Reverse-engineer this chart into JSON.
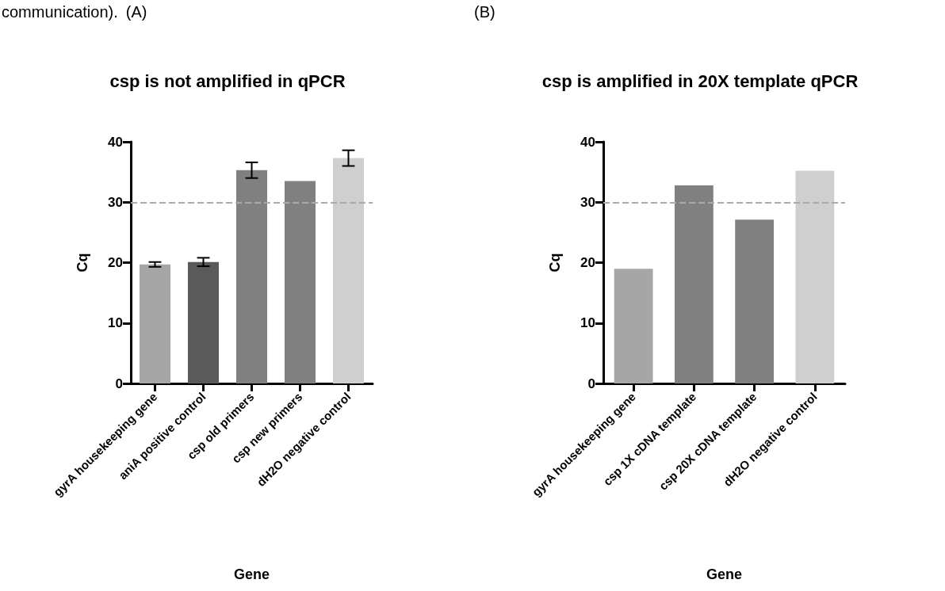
{
  "chart_data": [
    {
      "type": "bar",
      "title": "csp is not amplified in qPCR",
      "xlabel": "Gene",
      "ylabel": "Cq",
      "annotations": [
        "communication).",
        "(A)"
      ],
      "categories": [
        "gyrA housekeeping gene",
        "aniA positive control",
        "csp old primers",
        "csp new primers",
        "dH2O negative control"
      ],
      "values": [
        19.7,
        20.1,
        35.3,
        33.5,
        37.3
      ],
      "errors": [
        0.4,
        0.7,
        1.3,
        null,
        1.3
      ],
      "colors": [
        "#a6a6a6",
        "#5a5a5a",
        "#808080",
        "#808080",
        "#cfcfcf"
      ],
      "ylim": [
        0,
        40
      ],
      "yticks": [
        0,
        10,
        20,
        30,
        40
      ],
      "grid": false,
      "ref_lines": [
        {
          "axis": "y",
          "value": 30,
          "label": null,
          "color": "#aaaaaa",
          "line_style": "dashed"
        }
      ]
    },
    {
      "type": "bar",
      "title": "csp is amplified in 20X template qPCR",
      "xlabel": "Gene",
      "ylabel": "Cq",
      "annotations": [
        "(B)"
      ],
      "categories": [
        "gyrA housekeeping gene",
        "csp 1X cDNA template",
        "csp 20X cDNA template",
        "dH2O negative control"
      ],
      "values": [
        19.0,
        32.8,
        27.1,
        35.2
      ],
      "colors": [
        "#a6a6a6",
        "#808080",
        "#808080",
        "#cfcfcf"
      ],
      "ylim": [
        0,
        40
      ],
      "yticks": [
        0,
        10,
        20,
        30,
        40
      ],
      "grid": false,
      "ref_lines": [
        {
          "axis": "y",
          "value": 30,
          "label": null,
          "color": "#aaaaaa",
          "line_style": "dashed"
        }
      ]
    }
  ]
}
